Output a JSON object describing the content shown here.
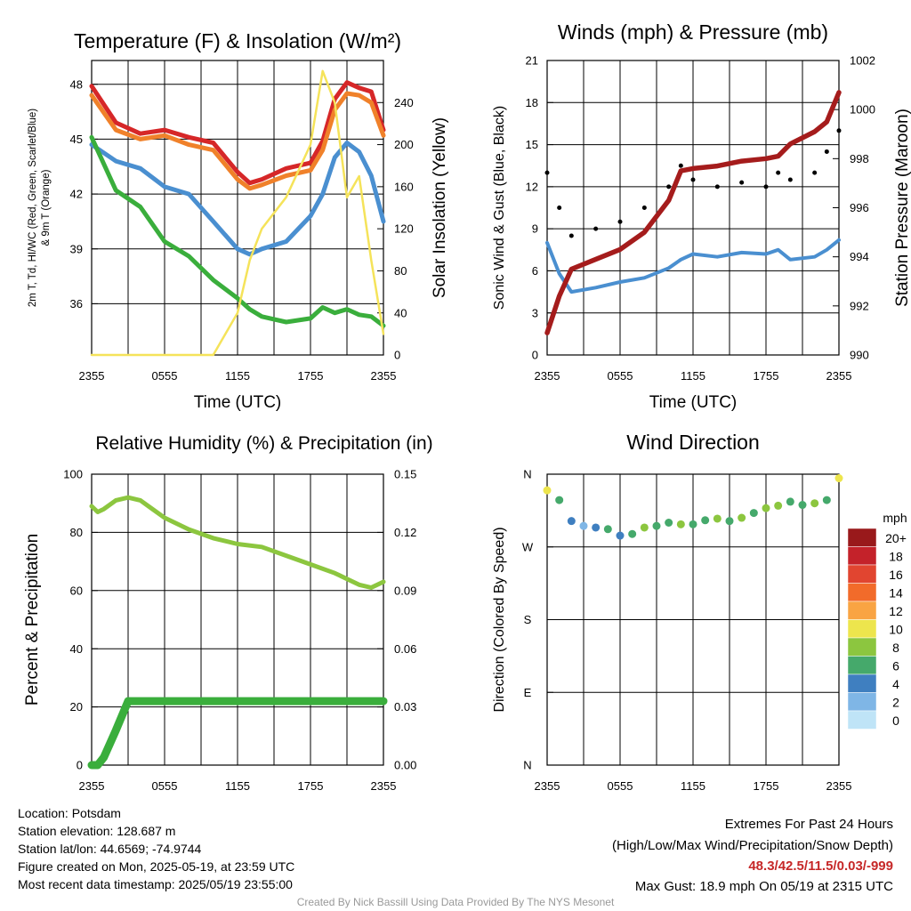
{
  "chart_data": [
    {
      "type": "line",
      "title": "Temperature (F) & Insolation (W/m²)",
      "ylabel_left_lines": [
        "2m T, Td, HI/WC (Red, Green, Scarlet/Blue)",
        "& 9m T (Orange)"
      ],
      "ylabel_right": "Solar Insolation (Yellow)",
      "xlabel": "Time (UTC)",
      "x_ticks": [
        "2355",
        "0555",
        "1155",
        "1755",
        "2355"
      ],
      "y_ticks_left": [
        "36",
        "39",
        "42",
        "45",
        "48"
      ],
      "ylim_left": [
        33.2,
        49.3
      ],
      "y_ticks_right": [
        "0",
        "40",
        "80",
        "120",
        "160",
        "200",
        "240"
      ],
      "ylim_right": [
        0,
        280
      ],
      "x": [
        0,
        2,
        4,
        6,
        8,
        10,
        12,
        13,
        14,
        16,
        18,
        19,
        20,
        21,
        22,
        23,
        24
      ],
      "series": [
        {
          "color": "#d62728",
          "axis": "left",
          "values": [
            47.9,
            45.9,
            45.3,
            45.5,
            45.1,
            44.8,
            43.2,
            42.6,
            42.8,
            43.4,
            43.7,
            44.9,
            47.2,
            48.1,
            47.8,
            47.6,
            45.5
          ]
        },
        {
          "color": "#f0812a",
          "axis": "left",
          "values": [
            47.4,
            45.5,
            45.0,
            45.2,
            44.7,
            44.4,
            42.8,
            42.3,
            42.5,
            43.0,
            43.3,
            44.4,
            46.6,
            47.5,
            47.4,
            47.0,
            45.2
          ]
        },
        {
          "color": "#4a8fd0",
          "axis": "left",
          "values": [
            44.7,
            43.8,
            43.4,
            42.4,
            42.0,
            40.5,
            39.0,
            38.7,
            39.0,
            39.4,
            40.8,
            42.0,
            44.0,
            44.8,
            44.3,
            43.0,
            40.5
          ]
        },
        {
          "color": "#3aae3c",
          "axis": "left",
          "values": [
            45.1,
            42.2,
            41.3,
            39.4,
            38.6,
            37.3,
            36.3,
            35.7,
            35.3,
            35.0,
            35.2,
            35.8,
            35.5,
            35.7,
            35.4,
            35.3,
            34.8
          ]
        },
        {
          "color": "#f5e35a",
          "axis": "right",
          "values": [
            0,
            0,
            0,
            0,
            0,
            0,
            40,
            90,
            120,
            150,
            200,
            270,
            240,
            150,
            170,
            90,
            20
          ]
        }
      ]
    },
    {
      "type": "line",
      "title": "Winds (mph) & Pressure (mb)",
      "ylabel_left": "Sonic Wind & Gust (Blue, Black)",
      "ylabel_right": "Station Pressure (Maroon)",
      "xlabel": "Time (UTC)",
      "x_ticks": [
        "2355",
        "0555",
        "1155",
        "1755",
        "2355"
      ],
      "y_ticks_left": [
        "0",
        "3",
        "6",
        "9",
        "12",
        "15",
        "18",
        "21"
      ],
      "ylim_left": [
        0,
        21
      ],
      "y_ticks_right": [
        "990",
        "992",
        "994",
        "996",
        "998",
        "1000",
        "1002"
      ],
      "ylim_right": [
        990,
        1002
      ],
      "x": [
        0,
        1,
        2,
        4,
        6,
        8,
        10,
        11,
        12,
        14,
        16,
        18,
        19,
        20,
        22,
        23,
        24
      ],
      "series": [
        {
          "color": "#4a8fd0",
          "axis": "left",
          "values": [
            8.0,
            5.8,
            4.5,
            4.8,
            5.2,
            5.5,
            6.2,
            6.8,
            7.2,
            7.0,
            7.3,
            7.2,
            7.5,
            6.8,
            7.0,
            7.5,
            8.2
          ]
        },
        {
          "color": "#000000",
          "axis": "left",
          "style": "dots",
          "values": [
            13.0,
            10.5,
            8.5,
            9.0,
            9.5,
            10.5,
            12.0,
            13.5,
            12.5,
            12.0,
            12.3,
            12.0,
            13.0,
            12.5,
            13.0,
            14.5,
            16.0
          ]
        },
        {
          "color": "#a51c1c",
          "axis": "right",
          "values": [
            990.9,
            992.4,
            993.5,
            993.9,
            994.3,
            995.0,
            996.3,
            997.5,
            997.6,
            997.7,
            997.9,
            998.0,
            998.1,
            998.6,
            999.1,
            999.5,
            1000.7
          ]
        }
      ]
    },
    {
      "type": "line",
      "title": "Relative Humidity (%) & Precipitation (in)",
      "ylabel_left": "Percent & Precipitation",
      "x_ticks": [
        "2355",
        "0555",
        "1155",
        "1755",
        "2355"
      ],
      "y_ticks_left": [
        "0",
        "20",
        "40",
        "60",
        "80",
        "100"
      ],
      "ylim_left": [
        0,
        100
      ],
      "y_ticks_right": [
        "0.00",
        "0.03",
        "0.06",
        "0.09",
        "0.12",
        "0.15"
      ],
      "ylim_right": [
        0,
        0.15
      ],
      "x": [
        0,
        0.5,
        1,
        2,
        3,
        4,
        5,
        6,
        8,
        10,
        12,
        14,
        16,
        18,
        20,
        21,
        22,
        23,
        24
      ],
      "series": [
        {
          "color": "#8cc63f",
          "axis": "left",
          "values": [
            89,
            87,
            88,
            91,
            92,
            91,
            88,
            85,
            81,
            78,
            76,
            75,
            72,
            69,
            66,
            64,
            62,
            61,
            63
          ]
        },
        {
          "color": "#3aae3c",
          "axis": "right",
          "values": [
            0,
            0,
            0.004,
            0.018,
            0.033,
            0.033,
            0.033,
            0.033,
            0.033,
            0.033,
            0.033,
            0.033,
            0.033,
            0.033,
            0.033,
            0.033,
            0.033,
            0.033,
            0.033
          ]
        }
      ]
    },
    {
      "type": "scatter",
      "title": "Wind Direction",
      "ylabel": "Direction (Colored By Speed)",
      "x_ticks": [
        "2355",
        "0555",
        "1155",
        "1755",
        "2355"
      ],
      "y_ticks": [
        "N",
        "E",
        "S",
        "W",
        "N"
      ],
      "ylim": [
        0,
        360
      ],
      "x": [
        0,
        1,
        2,
        3,
        4,
        5,
        6,
        7,
        8,
        9,
        10,
        11,
        12,
        13,
        14,
        15,
        16,
        17,
        18,
        19,
        20,
        21,
        22,
        23,
        24
      ],
      "values": [
        340,
        328,
        302,
        296,
        294,
        292,
        284,
        286,
        294,
        296,
        300,
        298,
        298,
        303,
        305,
        302,
        306,
        312,
        318,
        321,
        326,
        322,
        324,
        328,
        355
      ],
      "speeds": [
        10,
        6,
        4,
        3,
        4,
        6,
        5,
        7,
        8,
        6,
        7,
        8,
        6,
        7,
        9,
        6,
        8,
        7,
        9,
        8,
        6,
        7,
        8,
        6,
        10
      ],
      "legend_title": "mph",
      "legend": [
        {
          "label": "20+",
          "color": "#99191b"
        },
        {
          "label": "18",
          "color": "#c4222a"
        },
        {
          "label": "16",
          "color": "#e14530"
        },
        {
          "label": "14",
          "color": "#f26b2a"
        },
        {
          "label": "12",
          "color": "#f9a443"
        },
        {
          "label": "10",
          "color": "#ede54d"
        },
        {
          "label": "8",
          "color": "#8cc63f"
        },
        {
          "label": "6",
          "color": "#45a96b"
        },
        {
          "label": "4",
          "color": "#3f7fc0"
        },
        {
          "label": "2",
          "color": "#7fb6e6"
        },
        {
          "label": "0",
          "color": "#bfe4f7"
        }
      ]
    }
  ],
  "info": {
    "location": "Location: Potsdam",
    "elevation": "Station elevation: 128.687 m",
    "latlon": "Station lat/lon: 44.6569; -74.9744",
    "created": "Figure created on Mon, 2025-05-19, at 23:59 UTC",
    "recent": "Most recent data timestamp: 2025/05/19 23:55:00"
  },
  "extremes": {
    "title": "Extremes For Past 24 Hours",
    "subtitle": "(High/Low/Max Wind/Precipitation/Snow Depth)",
    "values": "48.3/42.5/11.5/0.03/-999",
    "gust": "Max Gust: 18.9 mph On 05/19 at 2315 UTC"
  },
  "credit": "Created By Nick Bassill Using Data Provided By The NYS Mesonet"
}
